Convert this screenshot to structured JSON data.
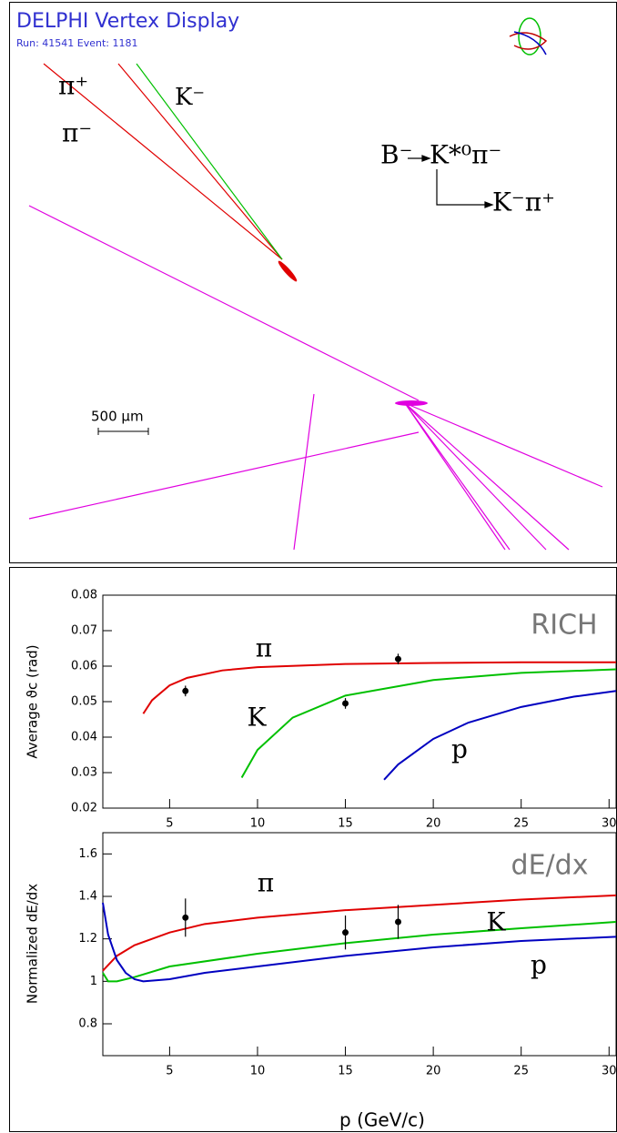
{
  "display": {
    "title": "DELPHI Vertex Display",
    "run": "Run: 41541 Event: 1181",
    "track_labels": [
      "π⁺",
      "π⁻",
      "K⁻"
    ],
    "decay_parent": "B⁻",
    "decay_products": "K*⁰π⁻",
    "decay_secondary": "K⁻π⁺",
    "scale": "500 μm"
  },
  "chart_data": [
    {
      "type": "line",
      "ylabel": "Average ϑc (rad)",
      "annotation": "RICH",
      "xlim": [
        1.2,
        30.4
      ],
      "ylim": [
        0.02,
        0.08
      ],
      "xticks": [
        5,
        10,
        15,
        20,
        25,
        30
      ],
      "yticks": [
        0.02,
        0.03,
        0.04,
        0.05,
        0.06,
        0.07,
        0.08
      ],
      "series": [
        {
          "name": "π",
          "color": "#e00000",
          "x": [
            3.5,
            4,
            5,
            6,
            8,
            10,
            15,
            20,
            25,
            30.4
          ],
          "values": [
            0.0466,
            0.0504,
            0.0546,
            0.0567,
            0.0588,
            0.0597,
            0.0606,
            0.0609,
            0.0611,
            0.0611
          ]
        },
        {
          "name": "K",
          "color": "#00c000",
          "x": [
            9.1,
            10,
            12,
            15,
            20,
            25,
            30.4
          ],
          "values": [
            0.0286,
            0.0364,
            0.0455,
            0.0517,
            0.0561,
            0.0581,
            0.0591
          ]
        },
        {
          "name": "p",
          "color": "#0000c0",
          "x": [
            17.2,
            18,
            20,
            22,
            25,
            28,
            30.4
          ],
          "values": [
            0.028,
            0.0323,
            0.0395,
            0.0441,
            0.0485,
            0.0514,
            0.053
          ]
        }
      ],
      "points": {
        "x": [
          5.9,
          15,
          18
        ],
        "values": [
          0.053,
          0.0495,
          0.062
        ],
        "errors": [
          0.0015,
          0.0015,
          0.0015
        ]
      }
    },
    {
      "type": "line",
      "ylabel": "Normalized dE/dx",
      "xlabel": "p (GeV/c)",
      "annotation": "dE/dx",
      "xlim": [
        1.2,
        30.4
      ],
      "ylim": [
        0.65,
        1.7
      ],
      "xticks": [
        5,
        10,
        15,
        20,
        25,
        30
      ],
      "yticks": [
        0.8,
        1,
        1.2,
        1.4,
        1.6
      ],
      "series": [
        {
          "name": "π",
          "color": "#e00000",
          "x": [
            1.2,
            2,
            3,
            5,
            7,
            10,
            15,
            20,
            25,
            30.4
          ],
          "values": [
            1.05,
            1.12,
            1.17,
            1.23,
            1.27,
            1.3,
            1.335,
            1.36,
            1.385,
            1.405
          ]
        },
        {
          "name": "K",
          "color": "#00c000",
          "x": [
            1.2,
            1.5,
            2,
            3,
            5,
            10,
            15,
            20,
            25,
            30.4
          ],
          "values": [
            1.04,
            1.0,
            1.0,
            1.02,
            1.07,
            1.13,
            1.18,
            1.22,
            1.25,
            1.28
          ]
        },
        {
          "name": "p",
          "color": "#0000c0",
          "x": [
            1.2,
            1.5,
            2,
            2.5,
            3,
            3.5,
            5,
            7,
            10,
            15,
            20,
            25,
            30.4
          ],
          "values": [
            1.37,
            1.22,
            1.1,
            1.04,
            1.01,
            1.0,
            1.01,
            1.04,
            1.07,
            1.12,
            1.16,
            1.19,
            1.21
          ]
        }
      ],
      "points": {
        "x": [
          5.9,
          15,
          18
        ],
        "values": [
          1.3,
          1.23,
          1.28
        ],
        "errors": [
          0.09,
          0.08,
          0.08
        ]
      }
    }
  ]
}
